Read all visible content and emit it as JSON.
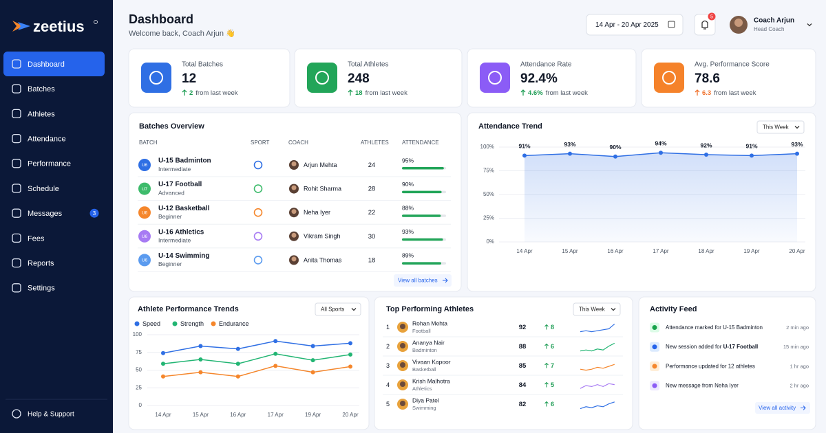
{
  "sidebar": {
    "brand": "zeetius",
    "nav": [
      {
        "label": "Dashboard"
      },
      {
        "label": "Batches"
      },
      {
        "label": "Athletes"
      },
      {
        "label": "Attendance"
      },
      {
        "label": "Performance"
      },
      {
        "label": "Schedule"
      },
      {
        "label": "Messages",
        "badge": 3
      },
      {
        "label": "Fees"
      },
      {
        "label": "Reports"
      },
      {
        "label": "Settings"
      }
    ],
    "help": "Help & Support"
  },
  "header": {
    "title": "Dashboard",
    "subtitle": "Welcome back, Coach Arjun 👋",
    "date_range": "14 Apr - 20 Apr 2025",
    "notifications": 5,
    "user": {
      "name": "Coach Arjun",
      "role": "Head Coach"
    }
  },
  "stats": [
    {
      "label": "Total Batches",
      "value": "12",
      "change": "2",
      "change_text": "from last week",
      "icon_color": "#2f6fe4",
      "trend_color": "#1f9d55"
    },
    {
      "label": "Total Athletes",
      "value": "248",
      "change": "18",
      "change_text": "from last week",
      "icon_color": "#22a559",
      "trend_color": "#1f9d55"
    },
    {
      "label": "Attendance Rate",
      "value": "92.4%",
      "change": "4.6%",
      "change_text": "from last week",
      "icon_color": "#8b5cf6",
      "trend_color": "#1f9d55"
    },
    {
      "label": "Avg. Performance Score",
      "value": "78.6",
      "change": "6.3",
      "change_text": "from last week",
      "icon_color": "#f5822a",
      "trend_color": "#f0702a"
    }
  ],
  "batches": {
    "title": "Batches Overview",
    "columns": [
      "BATCH",
      "SPORT",
      "COACH",
      "ATHLETES",
      "ATTENDANCE"
    ],
    "rows": [
      {
        "badge": "U6",
        "badge_color": "#2f6fe4",
        "name": "U-15 Badminton",
        "level": "Intermediate",
        "coach": "Arjun Mehta",
        "athletes": 24,
        "attendance": 95,
        "attendance_label": "95%"
      },
      {
        "badge": "U7",
        "badge_color": "#3dbb6b",
        "name": "U-17 Football",
        "level": "Advanced",
        "coach": "Rohit Sharma",
        "athletes": 28,
        "attendance": 90,
        "attendance_label": "90%"
      },
      {
        "badge": "U6",
        "badge_color": "#f5862b",
        "name": "U-12 Basketball",
        "level": "Beginner",
        "coach": "Neha Iyer",
        "athletes": 22,
        "attendance": 88,
        "attendance_label": "88%"
      },
      {
        "badge": "U6",
        "badge_color": "#a77bf3",
        "name": "U-16 Athletics",
        "level": "Intermediate",
        "coach": "Vikram Singh",
        "athletes": 30,
        "attendance": 93,
        "attendance_label": "93%"
      },
      {
        "badge": "U6",
        "badge_color": "#5b9bef",
        "name": "U-14 Swimming",
        "level": "Beginner",
        "coach": "Anita Thomas",
        "athletes": 18,
        "attendance": 89,
        "attendance_label": "89%"
      }
    ],
    "link": "View all batches"
  },
  "attendance_trend": {
    "type": "line",
    "title": "Attendance Trend",
    "filter": "This Week",
    "categories": [
      "14 Apr",
      "15 Apr",
      "16 Apr",
      "17 Apr",
      "18 Apr",
      "19 Apr",
      "20 Apr"
    ],
    "values": [
      91,
      93,
      90,
      94,
      92,
      91,
      93
    ],
    "value_labels": [
      "91%",
      "93%",
      "90%",
      "94%",
      "92%",
      "91%",
      "93%"
    ],
    "color": "#2f6fe4",
    "ylim": [
      0,
      100
    ],
    "yticks": [
      {
        "value": 0,
        "label": "0%"
      },
      {
        "value": 25,
        "label": "25%"
      },
      {
        "value": 50,
        "label": "50%"
      },
      {
        "value": 75,
        "label": "75%"
      },
      {
        "value": 100,
        "label": "100%"
      }
    ],
    "grid": true
  },
  "performance_trends": {
    "type": "line",
    "title": "Athlete Performance Trends",
    "filter": "All Sports",
    "categories": [
      "14 Apr",
      "15 Apr",
      "16 Apr",
      "17 Apr",
      "19 Apr",
      "20 Apr"
    ],
    "series": [
      {
        "name": "Speed",
        "color": "#2f6fe4",
        "values": [
          74,
          84,
          80,
          91,
          84,
          88
        ]
      },
      {
        "name": "Strength",
        "color": "#22b573",
        "values": [
          59,
          65,
          59,
          73,
          64,
          72
        ]
      },
      {
        "name": "Endurance",
        "color": "#f5862b",
        "values": [
          41,
          47,
          41,
          56,
          47,
          55
        ]
      }
    ],
    "ylim": [
      0,
      100
    ],
    "yticks": [
      0,
      25,
      50,
      75,
      100
    ],
    "grid": true
  },
  "top_athletes": {
    "title": "Top Performing Athletes",
    "filter": "This Week",
    "rows": [
      {
        "rank": 1,
        "name": "Rohan Mehta",
        "sport": "Football",
        "score": 92,
        "change": 8
      },
      {
        "rank": 2,
        "name": "Ananya Nair",
        "sport": "Badminton",
        "score": 88,
        "change": 6
      },
      {
        "rank": 3,
        "name": "Vivaan Kapoor",
        "sport": "Basketball",
        "score": 85,
        "change": 7
      },
      {
        "rank": 4,
        "name": "Krish Malhotra",
        "sport": "Athletics",
        "score": 84,
        "change": 5
      },
      {
        "rank": 5,
        "name": "Diya Patel",
        "sport": "Swimming",
        "score": 82,
        "change": 6
      }
    ]
  },
  "activity": {
    "title": "Activity Feed",
    "items": [
      {
        "text": "Attendance marked for U-15 Badminton",
        "time": "2 min ago"
      },
      {
        "text": "New session added for ",
        "bold": "U-17 Football",
        "time": "15 min ago"
      },
      {
        "text": "Performance updated for 12 athletes",
        "time": "1 hr ago"
      },
      {
        "text": "New message from Neha Iyer",
        "time": "2 hr ago"
      }
    ],
    "link": "View all activity"
  }
}
